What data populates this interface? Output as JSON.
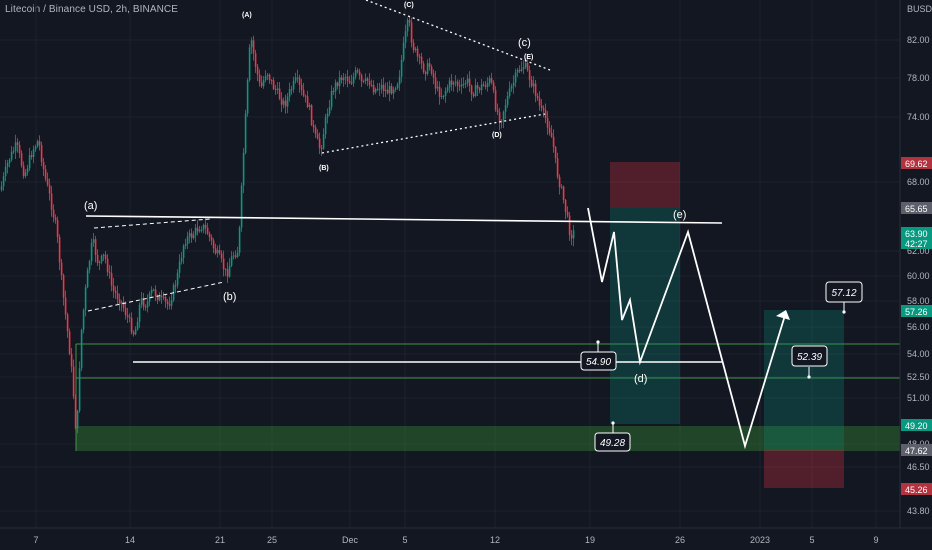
{
  "header": {
    "title": "Litecoin / Binance USD, 2h, BINANCE"
  },
  "chart_data": {
    "type": "candlestick",
    "title": "Litecoin / Binance USD, 2h, BINANCE",
    "currency": "BUSD",
    "y_ticks": [
      "82.00",
      "78.00",
      "74.00",
      "68.00",
      "62.00",
      "60.00",
      "58.00",
      "56.00",
      "54.00",
      "52.50",
      "51.00",
      "48.00",
      "46.50",
      "43.80"
    ],
    "x_ticks": [
      "7",
      "14",
      "21",
      "25",
      "Dec",
      "5",
      "12",
      "19",
      "26",
      "2023",
      "5",
      "9"
    ],
    "price_labels": [
      {
        "label": "69.62",
        "color": "#b2323f"
      },
      {
        "label": "65.65",
        "color": "#5d606b"
      },
      {
        "label": "63.90",
        "sub": "42:27",
        "color": "#089981"
      },
      {
        "label": "57.26",
        "color": "#089981"
      },
      {
        "label": "49.20",
        "color": "#089981"
      },
      {
        "label": "47.62",
        "color": "#5d606b"
      },
      {
        "label": "45.26",
        "color": "#b2323f"
      }
    ],
    "wave_labels_major": [
      "(a)",
      "(b)",
      "(c)",
      "(d)",
      "(e)"
    ],
    "wave_labels_minor": [
      "(A)",
      "(B)",
      "(C)",
      "(D)",
      "(E)"
    ],
    "callouts": [
      "54.90",
      "49.28",
      "52.39",
      "57.12"
    ],
    "accent_colors": {
      "up": "#089981",
      "down": "#f23645",
      "support_zone": "#2e7d32"
    }
  }
}
